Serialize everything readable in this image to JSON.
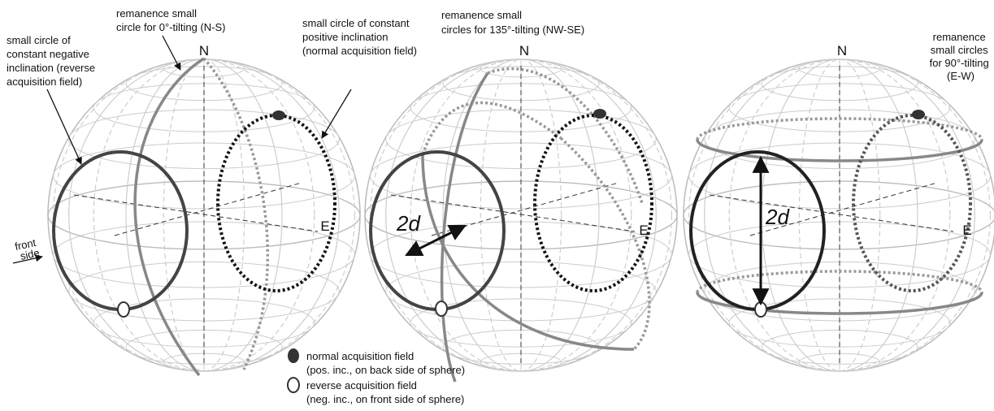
{
  "spheres": [
    {
      "north": "N",
      "east": "E",
      "labels": [
        {
          "lines": [
            "small circle of",
            "constant negative",
            "inclination (reverse",
            "acquisition field)"
          ]
        },
        {
          "lines": [
            "remanence small",
            "circle for 0°-tilting (N-S)"
          ]
        },
        {
          "lines": [
            "small circle of constant",
            "positive inclination",
            "(normal acquisition field)"
          ]
        }
      ],
      "side_label": [
        "front",
        "side"
      ]
    },
    {
      "north": "N",
      "east": "E",
      "distance": "2d",
      "labels": [
        {
          "lines": [
            "remanence small",
            "circles for 135°-tilting (NW-SE)"
          ]
        }
      ]
    },
    {
      "north": "N",
      "east": "E",
      "distance": "2d",
      "labels": [
        {
          "lines": [
            "remanence",
            "small circles",
            "for 90°-tilting",
            "(E-W)"
          ]
        }
      ]
    }
  ],
  "legend": [
    {
      "name": "normal acquisition field",
      "note": "(pos. inc., on back side of sphere)"
    },
    {
      "name": "reverse acquisition field",
      "note": "(neg. inc., on front side of sphere)"
    }
  ]
}
